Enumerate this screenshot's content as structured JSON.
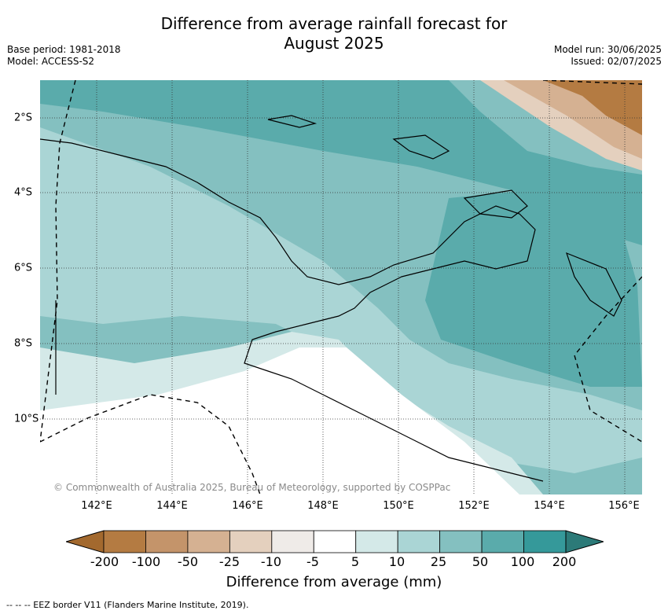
{
  "title_line1": "Difference from average rainfall forecast for",
  "title_line2": "August 2025",
  "base_period": "Base period: 1981-2018",
  "model": "Model: ACCESS-S2",
  "model_run": "Model run: 30/06/2025",
  "issued": "Issued: 02/07/2025",
  "copyright": "© Commonwealth of Australia 2025, Bureau of Meteorology, supported by COSPPac",
  "x_ticks": [
    "142°E",
    "144°E",
    "146°E",
    "148°E",
    "150°E",
    "152°E",
    "154°E",
    "156°E"
  ],
  "y_ticks": [
    "2°S",
    "4°S",
    "6°S",
    "8°S",
    "10°S"
  ],
  "colorbar": {
    "labels": [
      "-200",
      "-100",
      "-50",
      "-25",
      "-10",
      "-5",
      "5",
      "10",
      "25",
      "50",
      "100",
      "200"
    ],
    "colors": [
      "#a3692e",
      "#b47b42",
      "#c4946a",
      "#d5b192",
      "#e4d0be",
      "#efebe8",
      "#ffffff",
      "#d4e9e8",
      "#aad5d5",
      "#84c0c0",
      "#5aabab",
      "#35999a",
      "#2c7a78"
    ],
    "title": "Difference from average (mm)"
  },
  "footnote": "--  --  -- EEZ border V11 (Flanders Marine Institute, 2019).",
  "chart_data": {
    "type": "heatmap",
    "title": "Difference from average rainfall forecast for August 2025",
    "xlim": [
      141,
      156.5
    ],
    "ylim": [
      -11.5,
      -1
    ],
    "xlabel": "",
    "ylabel": "",
    "legend_title": "Difference from average (mm)",
    "legend_levels": [
      -200,
      -100,
      -50,
      -25,
      -10,
      -5,
      5,
      10,
      25,
      50,
      100,
      200
    ],
    "grid": true,
    "legend_position": "bottom"
  }
}
